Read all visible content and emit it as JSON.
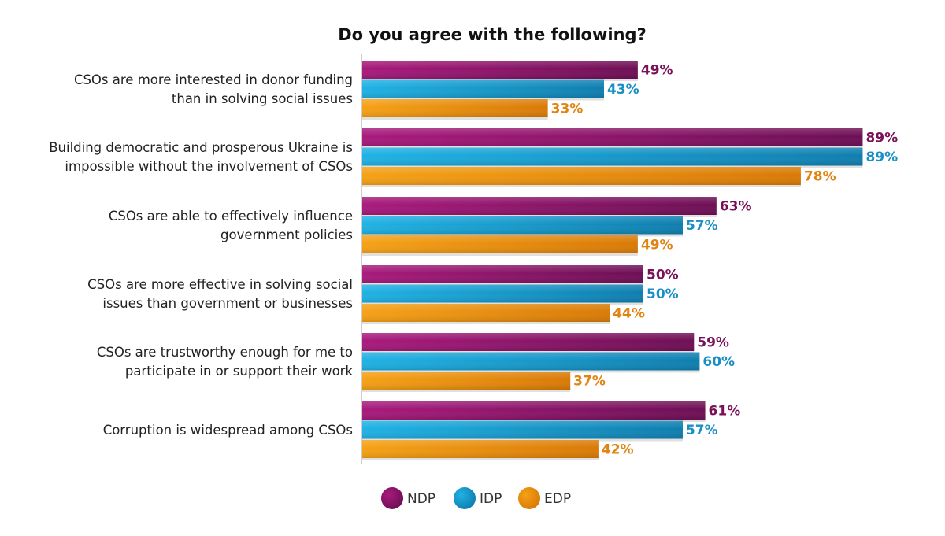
{
  "chart_data": {
    "type": "bar",
    "orientation": "horizontal",
    "title": "Do you agree with the following?",
    "categories": [
      [
        "CSOs are more interested in donor funding",
        "than in solving social issues"
      ],
      [
        "Building democratic and prosperous Ukraine is",
        "impossible without the involvement of CSOs"
      ],
      [
        "CSOs are able to effectively influence",
        "government policies"
      ],
      [
        "CSOs are more effective in solving social",
        "issues than government or businesses"
      ],
      [
        "CSOs are trustworthy enough for me to",
        "participate in or support their work"
      ],
      [
        "Corruption is widespread among CSOs"
      ]
    ],
    "series": [
      {
        "name": "NDP",
        "values": [
          49,
          89,
          63,
          50,
          59,
          61
        ],
        "labels": [
          "49%",
          "89%",
          "63%",
          "50%",
          "59%",
          "61%"
        ],
        "color": "#8c1466"
      },
      {
        "name": "IDP",
        "values": [
          43,
          89,
          57,
          50,
          60,
          57
        ],
        "labels": [
          "43%",
          "89%",
          "57%",
          "50%",
          "60%",
          "57%"
        ],
        "color": "#1a96c8"
      },
      {
        "name": "EDP",
        "values": [
          33,
          78,
          49,
          44,
          37,
          42
        ],
        "labels": [
          "33%",
          "78%",
          "49%",
          "44%",
          "37%",
          "42%"
        ],
        "color": "#e88a12"
      }
    ],
    "xlim": [
      0,
      100
    ],
    "legend": "bottom",
    "grid": false
  }
}
